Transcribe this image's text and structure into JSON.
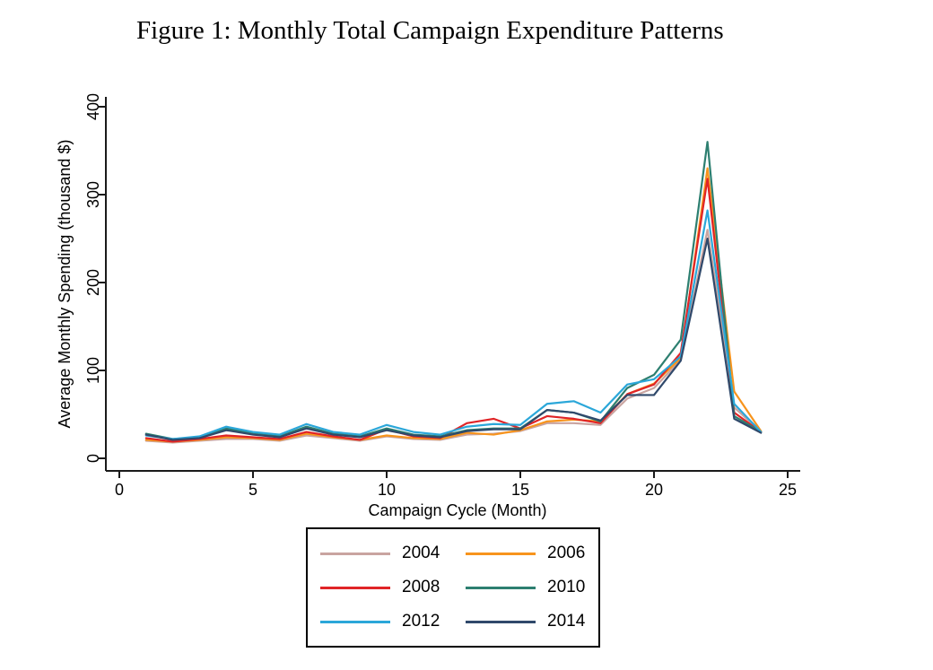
{
  "figure": {
    "title": "Figure 1: Monthly Total Campaign Expenditure Patterns"
  },
  "chart_data": {
    "type": "line",
    "xlabel": "Campaign Cycle (Month)",
    "ylabel": "Average Monthly Spending (thousand $)",
    "x_ticks": [
      0,
      5,
      10,
      15,
      20,
      25
    ],
    "y_ticks": [
      0,
      100,
      200,
      300,
      400
    ],
    "xlim": [
      0,
      25.5
    ],
    "ylim": [
      0,
      420
    ],
    "grid": false,
    "legend_position": "bottom",
    "x": [
      1,
      2,
      3,
      4,
      5,
      6,
      7,
      8,
      9,
      10,
      11,
      12,
      13,
      14,
      15,
      16,
      17,
      18,
      19,
      20,
      21,
      22,
      23,
      24
    ],
    "series": [
      {
        "name": "2004",
        "color": "#c9a4a0",
        "values": [
          20,
          18,
          20,
          22,
          22,
          20,
          26,
          23,
          20,
          25,
          22,
          21,
          27,
          28,
          31,
          40,
          40,
          38,
          68,
          80,
          112,
          260,
          58,
          30
        ]
      },
      {
        "name": "2006",
        "color": "#f7941d",
        "values": [
          21,
          19,
          21,
          24,
          23,
          21,
          28,
          24,
          21,
          26,
          23,
          22,
          29,
          27,
          32,
          42,
          44,
          42,
          73,
          85,
          114,
          330,
          76,
          31
        ]
      },
      {
        "name": "2008",
        "color": "#e02427",
        "values": [
          23,
          19,
          22,
          26,
          24,
          22,
          30,
          25,
          21,
          33,
          25,
          23,
          40,
          45,
          34,
          48,
          45,
          40,
          73,
          84,
          120,
          318,
          52,
          30
        ]
      },
      {
        "name": "2010",
        "color": "#2d7f70",
        "values": [
          28,
          22,
          24,
          34,
          28,
          25,
          36,
          28,
          25,
          34,
          27,
          25,
          32,
          34,
          34,
          55,
          52,
          42,
          80,
          95,
          135,
          360,
          48,
          30
        ]
      },
      {
        "name": "2012",
        "color": "#2ba7d9",
        "values": [
          26,
          22,
          25,
          36,
          30,
          27,
          39,
          30,
          27,
          38,
          30,
          27,
          36,
          39,
          38,
          62,
          65,
          52,
          84,
          90,
          116,
          282,
          62,
          30
        ]
      },
      {
        "name": "2014",
        "color": "#30496b",
        "values": [
          27,
          21,
          23,
          32,
          27,
          24,
          34,
          27,
          24,
          32,
          26,
          24,
          31,
          33,
          33,
          55,
          52,
          43,
          72,
          72,
          111,
          250,
          45,
          29
        ]
      }
    ]
  }
}
